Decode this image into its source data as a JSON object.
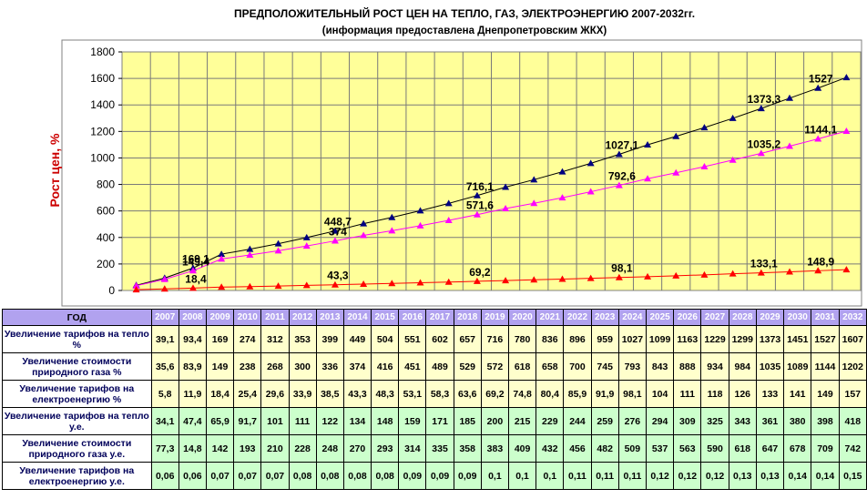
{
  "title": "ПРЕДПОЛОЖИТЕЛЬНЫЙ РОСТ ЦЕН НА ТЕПЛО, ГАЗ, ЭЛЕКТРОЭНЕРГИЮ 2007-2032гг.",
  "subtitle": "(информация предоставлена Днепропетровским ЖКХ)",
  "colors": {
    "plot_bg": "#ffff99",
    "grid": "#7a7a7a",
    "heat_line": "#000000",
    "heat_marker": "#000080",
    "gas_line": "#ff00ff",
    "gas_marker": "#ff00ff",
    "elec_line": "#ff0000",
    "elec_marker": "#ff0000",
    "header_bg": "#b1a2ef",
    "row_yellow": "#ffffcc",
    "row_green": "#ccffcc",
    "ylabel": "#cc0000"
  },
  "chart_data": {
    "type": "line",
    "title": "ПРЕДПОЛОЖИТЕЛЬНЫЙ РОСТ ЦЕН НА ТЕПЛО, ГАЗ, ЭЛЕКТРОЭНЕРГИЮ 2007-2032гг.",
    "subtitle": "(информация предоставлена Днепропетровским ЖКХ)",
    "ylabel": "Рост цен, %",
    "xlabel": "",
    "ylim": [
      0,
      1800
    ],
    "yticks": [
      "0",
      "200",
      "400",
      "600",
      "800",
      "1000",
      "1200",
      "1400",
      "1600",
      "1800"
    ],
    "grid": true,
    "x": [
      "2007",
      "2008",
      "2009",
      "2010",
      "2011",
      "2012",
      "2013",
      "2014",
      "2015",
      "2016",
      "2017",
      "2018",
      "2019",
      "2020",
      "2021",
      "2022",
      "2023",
      "2024",
      "2025",
      "2026",
      "2027",
      "2028",
      "2029",
      "2030",
      "2031",
      "2032"
    ],
    "series": [
      {
        "key": "heat",
        "values": [
          39.1,
          93.4,
          169,
          274,
          312,
          353,
          399,
          449,
          504,
          551,
          602,
          657,
          716,
          780,
          836,
          896,
          959,
          1027,
          1099,
          1163,
          1229,
          1299,
          1373,
          1451,
          1527,
          1607
        ],
        "labels": [
          {
            "i": 2,
            "text": "169,1"
          },
          {
            "i": 7,
            "text": "448,7"
          },
          {
            "i": 12,
            "text": "716,1"
          },
          {
            "i": 17,
            "text": "1027,1"
          },
          {
            "i": 22,
            "text": "1373,3"
          },
          {
            "i": 24,
            "text": "1527"
          }
        ]
      },
      {
        "key": "gas",
        "values": [
          35.6,
          83.9,
          149,
          238,
          268,
          300,
          336,
          374,
          416,
          451,
          489,
          529,
          572,
          618,
          658,
          700,
          745,
          793,
          843,
          888,
          934,
          984,
          1035,
          1089,
          1144,
          1202
        ],
        "labels": [
          {
            "i": 2,
            "text": "149,4"
          },
          {
            "i": 7,
            "text": "374"
          },
          {
            "i": 12,
            "text": "571,6"
          },
          {
            "i": 17,
            "text": "792,6"
          },
          {
            "i": 22,
            "text": "1035,2"
          },
          {
            "i": 24,
            "text": "1144,1"
          }
        ]
      },
      {
        "key": "elec",
        "values": [
          5.8,
          11.9,
          18.4,
          25.4,
          29.6,
          33.9,
          38.5,
          43.3,
          48.3,
          53.1,
          58.3,
          63.6,
          69.2,
          74.8,
          80.4,
          85.9,
          91.9,
          98.1,
          104,
          111,
          118,
          126,
          133,
          141,
          149,
          157
        ],
        "labels": [
          {
            "i": 2,
            "text": "18,4"
          },
          {
            "i": 7,
            "text": "43,3"
          },
          {
            "i": 12,
            "text": "69,2"
          },
          {
            "i": 17,
            "text": "98,1"
          },
          {
            "i": 22,
            "text": "133,1"
          },
          {
            "i": 24,
            "text": "148,9"
          }
        ]
      }
    ]
  },
  "table": {
    "header_label": "ГОД",
    "years": [
      "2007",
      "2008",
      "2009",
      "2010",
      "2011",
      "2012",
      "2013",
      "2014",
      "2015",
      "2016",
      "2017",
      "2018",
      "2019",
      "2020",
      "2021",
      "2022",
      "2023",
      "2024",
      "2025",
      "2026",
      "2027",
      "2028",
      "2029",
      "2030",
      "2031",
      "2032"
    ],
    "rows": [
      {
        "label": "Увеличение тарифов на тепло %",
        "style": "y",
        "values": [
          "39,1",
          "93,4",
          "169",
          "274",
          "312",
          "353",
          "399",
          "449",
          "504",
          "551",
          "602",
          "657",
          "716",
          "780",
          "836",
          "896",
          "959",
          "1027",
          "1099",
          "1163",
          "1229",
          "1299",
          "1373",
          "1451",
          "1527",
          "1607"
        ]
      },
      {
        "label": "Увеличение стоимости природного газа %",
        "style": "y",
        "values": [
          "35,6",
          "83,9",
          "149",
          "238",
          "268",
          "300",
          "336",
          "374",
          "416",
          "451",
          "489",
          "529",
          "572",
          "618",
          "658",
          "700",
          "745",
          "793",
          "843",
          "888",
          "934",
          "984",
          "1035",
          "1089",
          "1144",
          "1202"
        ]
      },
      {
        "label": "Увеличение тарифов на електроенергию %",
        "style": "y",
        "values": [
          "5,8",
          "11,9",
          "18,4",
          "25,4",
          "29,6",
          "33,9",
          "38,5",
          "43,3",
          "48,3",
          "53,1",
          "58,3",
          "63,6",
          "69,2",
          "74,8",
          "80,4",
          "85,9",
          "91,9",
          "98,1",
          "104",
          "111",
          "118",
          "126",
          "133",
          "141",
          "149",
          "157"
        ]
      },
      {
        "label": "Увеличение тарифов на тепло у.е.",
        "style": "g",
        "values": [
          "34,1",
          "47,4",
          "65,9",
          "91,7",
          "101",
          "111",
          "122",
          "134",
          "148",
          "159",
          "171",
          "185",
          "200",
          "215",
          "229",
          "244",
          "259",
          "276",
          "294",
          "309",
          "325",
          "343",
          "361",
          "380",
          "398",
          "418"
        ]
      },
      {
        "label": "Увеличение стоимости природного газа у.е.",
        "style": "g",
        "values": [
          "77,3",
          "14,8",
          "142",
          "193",
          "210",
          "228",
          "248",
          "270",
          "293",
          "314",
          "335",
          "358",
          "383",
          "409",
          "432",
          "456",
          "482",
          "509",
          "537",
          "563",
          "590",
          "618",
          "647",
          "678",
          "709",
          "742"
        ]
      },
      {
        "label": "Увеличение тарифов на електроенергию у.е.",
        "style": "g",
        "values": [
          "0,06",
          "0,06",
          "0,07",
          "0,07",
          "0,07",
          "0,08",
          "0,08",
          "0,08",
          "0,08",
          "0,09",
          "0,09",
          "0,09",
          "0,1",
          "0,1",
          "0,1",
          "0,11",
          "0,11",
          "0,11",
          "0,12",
          "0,12",
          "0,12",
          "0,13",
          "0,13",
          "0,14",
          "0,14",
          "0,15"
        ]
      }
    ]
  }
}
